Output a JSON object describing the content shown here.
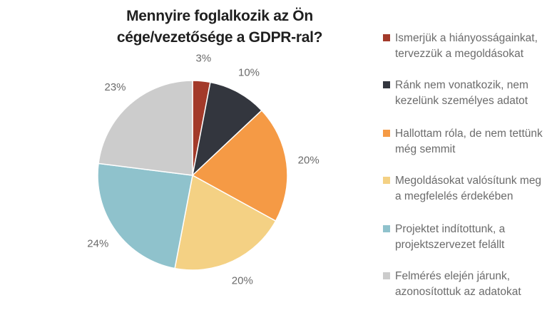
{
  "chart_data": {
    "type": "pie",
    "title": "Mennyire foglalkozik az Ön cége/vezetősége a GDPR-ral?",
    "categories": [
      "Ismerjük a hiányosságainkat, tervezzük a megoldásokat",
      "Ránk nem vonatkozik, nem kezelünk személyes adatot",
      "Hallottam róla, de nem tettünk még semmit",
      "Megoldásokat valósítunk meg a megfelelés érdekében",
      "Projektet indítottunk, a projektszervezet felállt",
      "Felmérés elején járunk, azonosítottuk az adatokat"
    ],
    "values": [
      3,
      10,
      20,
      20,
      24,
      23
    ],
    "data_labels": [
      "3%",
      "10%",
      "20%",
      "20%",
      "24%",
      "23%"
    ],
    "colors": [
      "#a33a2a",
      "#33363e",
      "#f59a45",
      "#f4d184",
      "#8fc2cc",
      "#cccccc"
    ],
    "legend_position": "right"
  }
}
